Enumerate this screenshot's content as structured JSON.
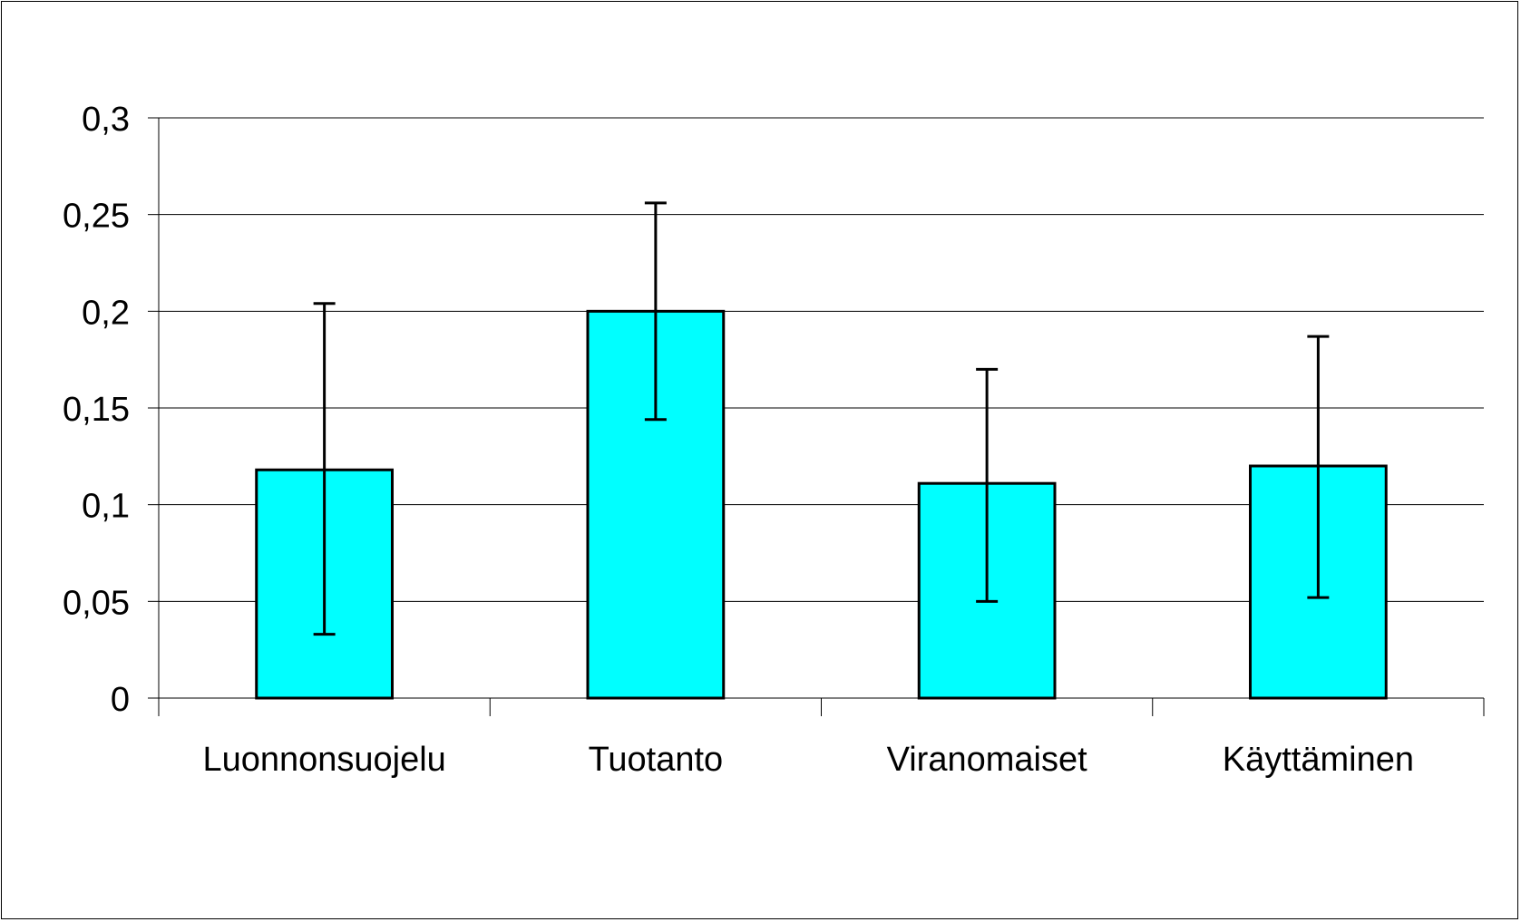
{
  "chart_data": {
    "type": "bar",
    "title": "",
    "xlabel": "",
    "ylabel": "",
    "categories": [
      "Luonnonsuojelu",
      "Tuotanto",
      "Viranomaiset",
      "Käyttäminen"
    ],
    "values": [
      0.118,
      0.2,
      0.111,
      0.12
    ],
    "error_bars": {
      "upper": [
        0.204,
        0.256,
        0.17,
        0.187
      ],
      "lower": [
        0.033,
        0.144,
        0.05,
        0.052
      ]
    },
    "ylim": [
      0,
      0.3
    ],
    "y_ticks": [
      0,
      0.05,
      0.1,
      0.15,
      0.2,
      0.25,
      0.3
    ],
    "y_tick_labels": [
      "0",
      "0,05",
      "0,1",
      "0,15",
      "0,2",
      "0,25",
      "0,3"
    ],
    "grid": true,
    "legend": "none",
    "colors": {
      "bar_fill": "#00FFFF",
      "bar_stroke": "#000000",
      "grid": "#000000"
    }
  }
}
